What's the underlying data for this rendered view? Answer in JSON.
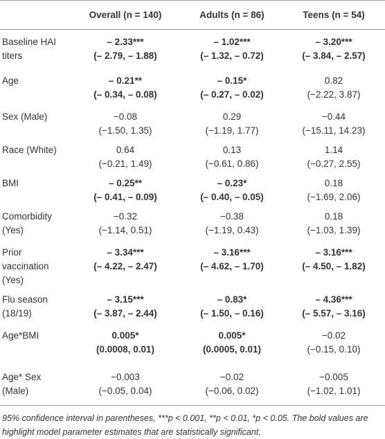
{
  "table": {
    "header": [
      "",
      "Overall (n = 140)",
      "Adults (n = 86)",
      "Teens (n = 54)"
    ],
    "rows": [
      {
        "label": "Baseline HAI titers",
        "cells": [
          {
            "estimate": "– 2.33***",
            "ci": "(– 2.79, – 1.88)",
            "bold": true
          },
          {
            "estimate": "– 1.02***",
            "ci": "(– 1.32, – 0.72)",
            "bold": true
          },
          {
            "estimate": "– 3.20***",
            "ci": "(– 3.84, – 2.57)",
            "bold": true
          }
        ]
      },
      {
        "label": "Age",
        "cells": [
          {
            "estimate": "– 0.21**",
            "ci": "(– 0.34, – 0.08)",
            "bold": true
          },
          {
            "estimate": "– 0.15*",
            "ci": "(– 0.27, – 0.02)",
            "bold": true
          },
          {
            "estimate": "0.82",
            "ci": "(−2.22, 3.87)",
            "bold": false
          }
        ]
      },
      {
        "label": "Sex (Male)",
        "cells": [
          {
            "estimate": "−0.08",
            "ci": "(−1.50, 1.35)",
            "bold": false
          },
          {
            "estimate": "0.29",
            "ci": "(−1.19, 1.77)",
            "bold": false
          },
          {
            "estimate": "−0.44",
            "ci": "(−15.11, 14.23)",
            "bold": false
          }
        ]
      },
      {
        "label": "Race (White)",
        "cells": [
          {
            "estimate": "0.64",
            "ci": "(−0.21, 1.49)",
            "bold": false
          },
          {
            "estimate": "0.13",
            "ci": "(−0.61, 0.86)",
            "bold": false
          },
          {
            "estimate": "1.14",
            "ci": "(−0.27, 2.55)",
            "bold": false
          }
        ]
      },
      {
        "label": "BMI",
        "cells": [
          {
            "estimate": "– 0.25**",
            "ci": "(– 0.41, – 0.09)",
            "bold": true
          },
          {
            "estimate": "– 0.23*",
            "ci": "(– 0.40, – 0.05)",
            "bold": true
          },
          {
            "estimate": "0.18",
            "ci": "(−1.69, 2.06)",
            "bold": false
          }
        ]
      },
      {
        "label": "Comorbidity (Yes)",
        "cells": [
          {
            "estimate": "−0.32",
            "ci": "(−1.14, 0.51)",
            "bold": false
          },
          {
            "estimate": "−0.38",
            "ci": "(−1.19, 0.43)",
            "bold": false
          },
          {
            "estimate": "0.18",
            "ci": "(−1.03, 1.39)",
            "bold": false
          }
        ]
      },
      {
        "label": "Prior vaccination (Yes)",
        "cells": [
          {
            "estimate": "– 3.34***",
            "ci": "(– 4.22, – 2.47)",
            "bold": true
          },
          {
            "estimate": "– 3.16***",
            "ci": "(– 4.62, – 1.70)",
            "bold": true
          },
          {
            "estimate": "– 3.16***",
            "ci": "(– 4.50, – 1.82)",
            "bold": true
          }
        ]
      },
      {
        "label": "Flu season (18/19)",
        "cells": [
          {
            "estimate": "– 3.15***",
            "ci": "(– 3.87, – 2.44)",
            "bold": true
          },
          {
            "estimate": "– 0.83*",
            "ci": "(– 1.50, – 0.16)",
            "bold": true
          },
          {
            "estimate": "– 4.36***",
            "ci": "(– 5.57, – 3.16)",
            "bold": true
          }
        ]
      },
      {
        "label": "Age*BMI",
        "cells": [
          {
            "estimate": "0.005*",
            "ci": "(0.0008, 0.01)",
            "bold": true
          },
          {
            "estimate": "0.005*",
            "ci": "(0.0005, 0.01)",
            "bold": true
          },
          {
            "estimate": "−0.02",
            "ci": "(−0.15, 0.10)",
            "bold": false
          }
        ]
      },
      {
        "label": "Age* Sex (Male)",
        "cells": [
          {
            "estimate": "−0.003",
            "ci": "(−0.05, 0.04)",
            "bold": false
          },
          {
            "estimate": "−0.02",
            "ci": "(−0.06, 0.02)",
            "bold": false
          },
          {
            "estimate": "−0.005",
            "ci": "(−1.02, 1.01)",
            "bold": false
          }
        ]
      }
    ],
    "footnote": "95% confidence interval in parentheses, ***p < 0.001, **p < 0.01, *p < 0.05. The bold values are highlight model parameter estimates that are statistically significant."
  }
}
